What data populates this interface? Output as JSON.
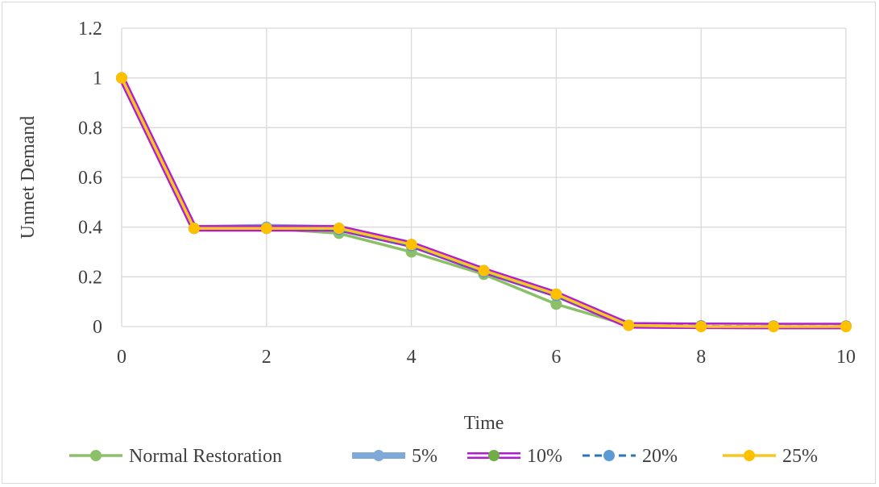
{
  "chart_data": {
    "type": "line",
    "title": "",
    "xlabel": "Time",
    "ylabel": "Unmet Demand",
    "xlim": [
      0,
      10
    ],
    "ylim": [
      0,
      1.2
    ],
    "x_ticks": [
      "0",
      "2",
      "4",
      "6",
      "8",
      "10"
    ],
    "y_ticks": [
      "0",
      "0.2",
      "0.4",
      "0.6",
      "0.8",
      "1",
      "1.2"
    ],
    "grid": true,
    "legend_position": "bottom",
    "x": [
      0,
      1,
      2,
      3,
      4,
      5,
      6,
      7,
      8,
      9,
      10
    ],
    "series": [
      {
        "name": "Normal Restoration",
        "color": "#8cc068",
        "style": "solid-marker",
        "values": [
          1,
          0.395,
          0.395,
          0.375,
          0.3,
          0.21,
          0.09,
          0.005,
          0,
          0,
          0
        ]
      },
      {
        "name": "5%",
        "color": "#7fa9d8",
        "style": "thick-solid-marker",
        "values": [
          1,
          0.395,
          0.4,
          0.395,
          0.33,
          0.225,
          0.13,
          0.005,
          0.003,
          0.002,
          0.002
        ]
      },
      {
        "name": "10%",
        "color": "#b41ad3",
        "style": "double-purple-green-marker",
        "values": [
          1,
          0.395,
          0.395,
          0.395,
          0.33,
          0.225,
          0.13,
          0.005,
          0.003,
          0.002,
          0.002
        ]
      },
      {
        "name": "20%",
        "color": "#2e75b6",
        "style": "dashed-marker",
        "values": [
          1,
          0.395,
          0.395,
          0.39,
          0.325,
          0.22,
          0.125,
          0.005,
          0.002,
          0.001,
          0.001
        ]
      },
      {
        "name": "25%",
        "color": "#f5c820",
        "style": "solid-marker-yellow",
        "values": [
          1,
          0.395,
          0.395,
          0.395,
          0.33,
          0.225,
          0.13,
          0.005,
          0,
          0,
          0
        ]
      }
    ]
  }
}
